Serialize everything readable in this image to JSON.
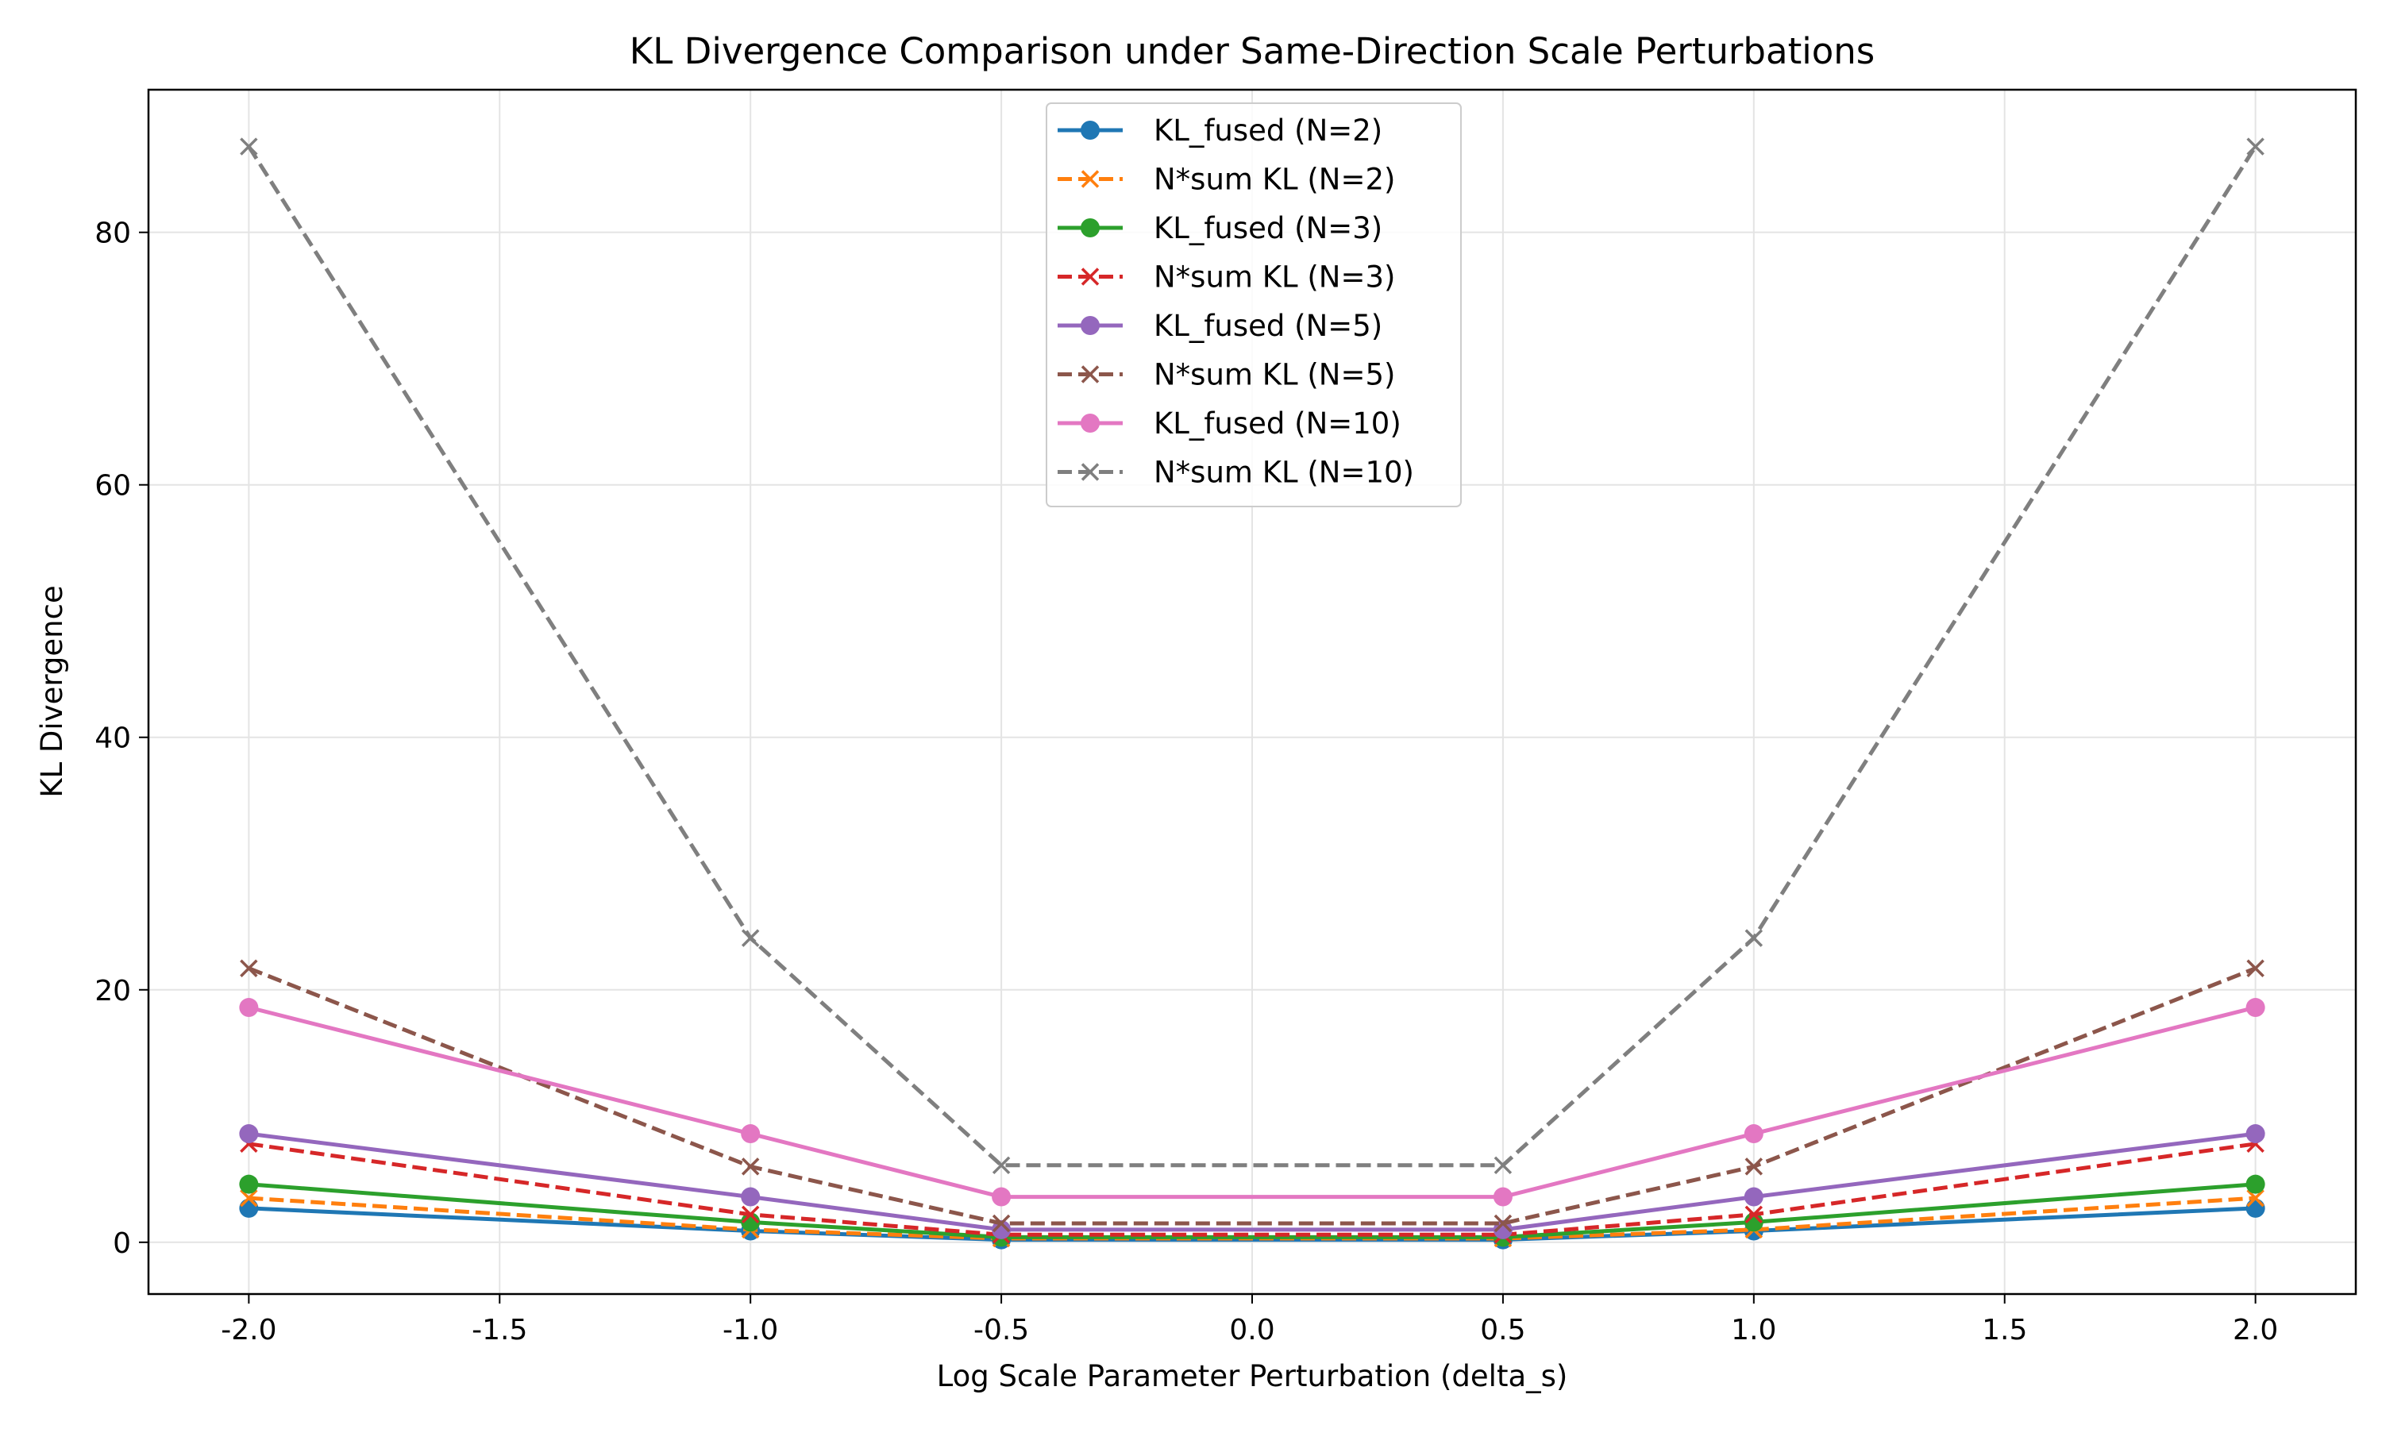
{
  "chart_data": {
    "type": "line",
    "title": "KL Divergence Comparison under Same-Direction Scale Perturbations",
    "xlabel": "Log Scale Parameter Perturbation (delta_s)",
    "ylabel": "KL Divergence",
    "xlim": [
      -2.2,
      2.2
    ],
    "ylim": [
      -4.1,
      91.3
    ],
    "xticks": [
      -2.0,
      -1.5,
      -1.0,
      -0.5,
      0.0,
      0.5,
      1.0,
      1.5,
      2.0
    ],
    "xtick_labels": [
      "-2.0",
      "-1.5",
      "-1.0",
      "-0.5",
      "0.0",
      "0.5",
      "1.0",
      "1.5",
      "2.0"
    ],
    "yticks": [
      0,
      20,
      40,
      60,
      80
    ],
    "ytick_labels": [
      "0",
      "20",
      "40",
      "60",
      "80"
    ],
    "grid": true,
    "legend_position": "upper-center",
    "x": [
      -2.0,
      -1.0,
      -0.5,
      0.5,
      1.0,
      2.0
    ],
    "series": [
      {
        "name": "KL_fused (N=2)",
        "color": "#1f77b4",
        "dash": "solid",
        "marker": "circle",
        "values": [
          2.7,
          0.9,
          0.2,
          0.2,
          0.9,
          2.7
        ]
      },
      {
        "name": "N*sum KL (N=2)",
        "color": "#ff7f0e",
        "dash": "dashed",
        "marker": "x",
        "values": [
          3.5,
          1.0,
          0.3,
          0.3,
          1.0,
          3.5
        ]
      },
      {
        "name": "KL_fused (N=3)",
        "color": "#2ca02c",
        "dash": "solid",
        "marker": "circle",
        "values": [
          4.6,
          1.6,
          0.4,
          0.4,
          1.6,
          4.6
        ]
      },
      {
        "name": "N*sum KL (N=3)",
        "color": "#d62728",
        "dash": "dashed",
        "marker": "x",
        "values": [
          7.8,
          2.2,
          0.6,
          0.6,
          2.2,
          7.8
        ]
      },
      {
        "name": "KL_fused (N=5)",
        "color": "#9467bd",
        "dash": "solid",
        "marker": "circle",
        "values": [
          8.6,
          3.6,
          1.0,
          1.0,
          3.6,
          8.6
        ]
      },
      {
        "name": "N*sum KL (N=5)",
        "color": "#8c564b",
        "dash": "dashed",
        "marker": "x",
        "values": [
          21.7,
          6.0,
          1.5,
          1.5,
          6.0,
          21.7
        ]
      },
      {
        "name": "KL_fused (N=10)",
        "color": "#e377c2",
        "dash": "solid",
        "marker": "circle",
        "values": [
          18.6,
          8.6,
          3.6,
          3.6,
          8.6,
          18.6
        ]
      },
      {
        "name": "N*sum KL (N=10)",
        "color": "#7f7f7f",
        "dash": "dashed",
        "marker": "x",
        "values": [
          86.8,
          24.1,
          6.1,
          6.1,
          24.1,
          86.8
        ]
      }
    ]
  }
}
